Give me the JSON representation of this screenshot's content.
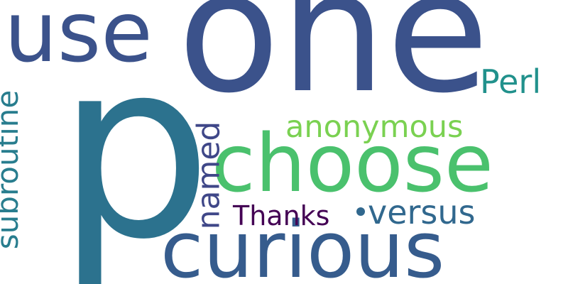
{
  "wordcloud": {
    "words": [
      {
        "text": "one",
        "color": "#3b528b"
      },
      {
        "text": "p",
        "color": "#2c728e"
      },
      {
        "text": "use",
        "color": "#3b528b"
      },
      {
        "text": "choose",
        "color": "#4ac16d"
      },
      {
        "text": "curious",
        "color": "#365c8d"
      },
      {
        "text": "subroutine",
        "color": "#287d8e"
      },
      {
        "text": "named",
        "color": "#3f4788"
      },
      {
        "text": "anonymous",
        "color": "#7ad151"
      },
      {
        "text": "Perl",
        "color": "#21918c"
      },
      {
        "text": "Thanks",
        "color": "#440154"
      },
      {
        "text": "versus",
        "color": "#31688e"
      }
    ]
  }
}
